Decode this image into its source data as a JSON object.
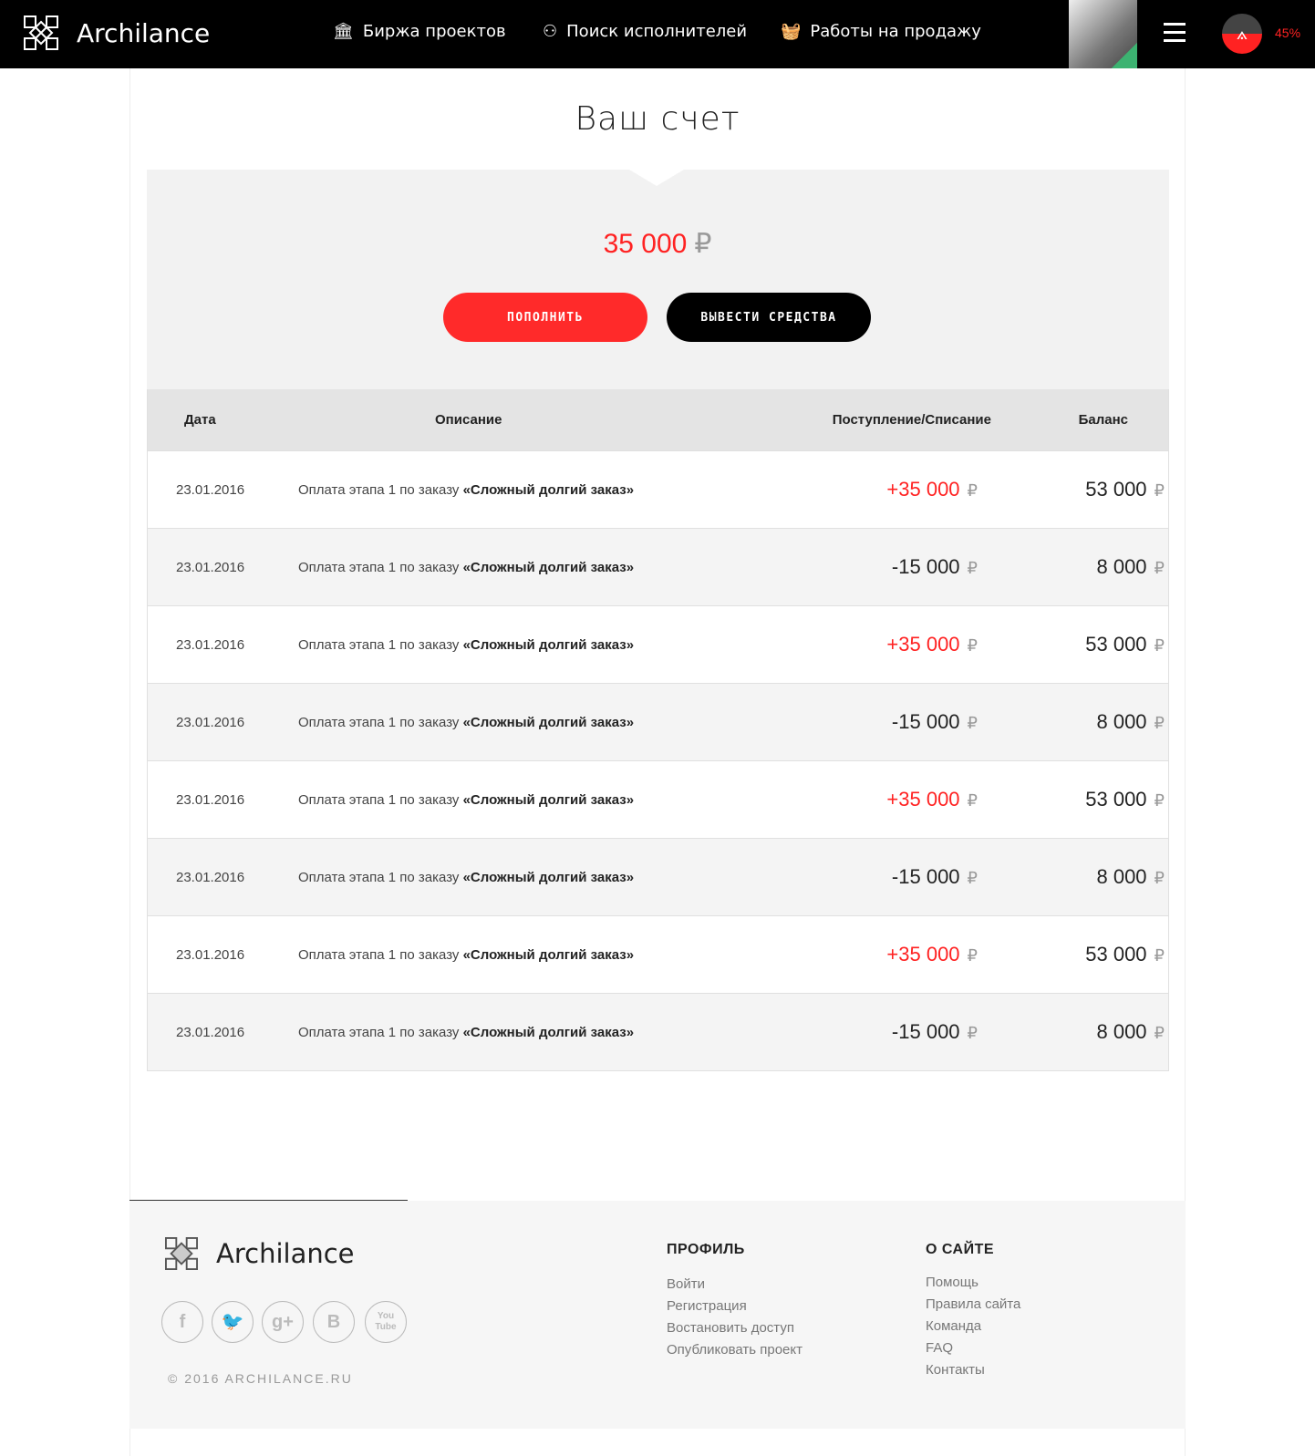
{
  "header": {
    "brand": "Archilance",
    "nav": [
      {
        "label": "Биржа проектов",
        "icon": "building-icon"
      },
      {
        "label": "Поиск исполнителей",
        "icon": "binoculars-icon"
      },
      {
        "label": "Работы на продажу",
        "icon": "basket-icon"
      }
    ],
    "progress": "45%"
  },
  "page": {
    "title": "Ваш счет",
    "balance": "35 000",
    "currency": "₽",
    "topup_label": "ПОПОЛНИТЬ",
    "withdraw_label": "ВЫВЕСТИ СРЕДСТВА"
  },
  "table": {
    "headers": [
      "Дата",
      "Описание",
      "Поступление/Списание",
      "Баланс"
    ],
    "rows": [
      {
        "date": "23.01.2016",
        "desc": "Оплата этапа 1 по заказу ",
        "order": "«Сложный долгий заказ»",
        "amount": "+35 000",
        "balance": "53 000"
      },
      {
        "date": "23.01.2016",
        "desc": "Оплата этапа 1 по заказу ",
        "order": "«Сложный долгий заказ»",
        "amount": "-15 000",
        "balance": "8 000"
      },
      {
        "date": "23.01.2016",
        "desc": "Оплата этапа 1 по заказу ",
        "order": "«Сложный долгий заказ»",
        "amount": "+35 000",
        "balance": "53 000"
      },
      {
        "date": "23.01.2016",
        "desc": "Оплата этапа 1 по заказу ",
        "order": "«Сложный долгий заказ»",
        "amount": "-15 000",
        "balance": "8 000"
      },
      {
        "date": "23.01.2016",
        "desc": "Оплата этапа 1 по заказу ",
        "order": "«Сложный долгий заказ»",
        "amount": "+35 000",
        "balance": "53 000"
      },
      {
        "date": "23.01.2016",
        "desc": "Оплата этапа 1 по заказу ",
        "order": "«Сложный долгий заказ»",
        "amount": "-15 000",
        "balance": "8 000"
      },
      {
        "date": "23.01.2016",
        "desc": "Оплата этапа 1 по заказу ",
        "order": "«Сложный долгий заказ»",
        "amount": "+35 000",
        "balance": "53 000"
      },
      {
        "date": "23.01.2016",
        "desc": "Оплата этапа 1 по заказу ",
        "order": "«Сложный долгий заказ»",
        "amount": "-15 000",
        "balance": "8 000"
      }
    ]
  },
  "footer": {
    "brand": "Archilance",
    "copyright": "© 2016 ARCHILANCE.RU",
    "social": [
      "f",
      "🐦",
      "g+",
      "B",
      "You Tube"
    ],
    "profile": {
      "title": "ПРОФИЛЬ",
      "links": [
        "Войти",
        "Регистрация",
        "Востановить доступ",
        "Опубликовать проект"
      ]
    },
    "about": {
      "title": "О САЙТЕ",
      "links": [
        "Помощь",
        "Правила сайта",
        "Команда",
        "FAQ",
        "Контакты"
      ]
    }
  },
  "colors": {
    "accent": "#ff2a2a",
    "dark": "#000000"
  }
}
